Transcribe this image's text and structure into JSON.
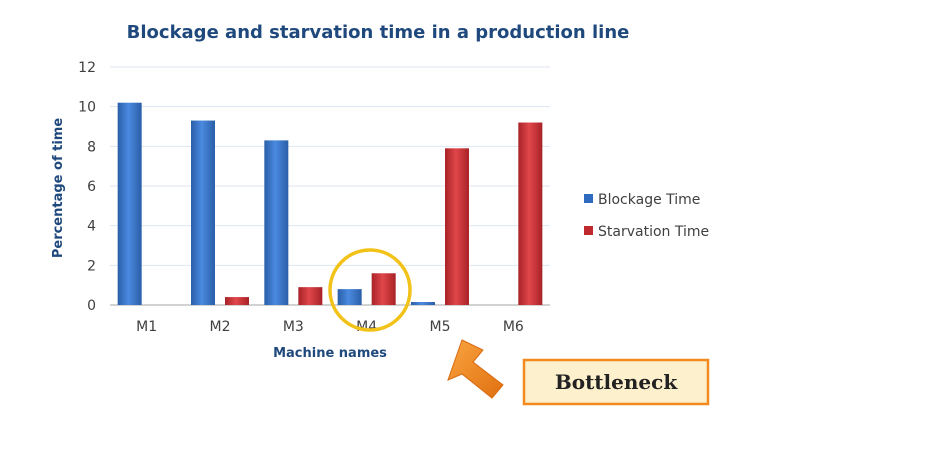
{
  "chart_data": {
    "type": "bar",
    "title": "Blockage and starvation time in a production line",
    "xlabel": "Machine names",
    "ylabel": "Percentage of time",
    "categories": [
      "M1",
      "M2",
      "M3",
      "M4",
      "M5",
      "M6"
    ],
    "series": [
      {
        "name": "Blockage Time",
        "color": "#2e6bc0",
        "values": [
          10.2,
          9.3,
          8.3,
          0.8,
          0.15,
          0
        ]
      },
      {
        "name": "Starvation Time",
        "color": "#c0292e",
        "values": [
          0,
          0.4,
          0.9,
          1.6,
          7.9,
          9.2
        ]
      }
    ],
    "ylim": [
      0,
      12
    ],
    "yticks": [
      0,
      2,
      4,
      6,
      8,
      10,
      12
    ],
    "grid": true,
    "legend": "right",
    "annotations": [
      {
        "text": "Bottleneck",
        "target": "M4",
        "highlight_color": "#f2c218",
        "arrow_color": "#f28a1e",
        "box_fill": "#fdf0cc",
        "box_border": "#f28a1e"
      }
    ]
  }
}
